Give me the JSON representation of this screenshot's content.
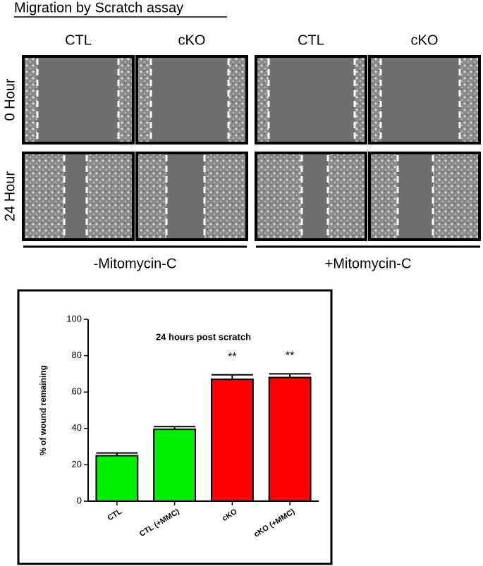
{
  "figure": {
    "title": "Migration by Scratch assay",
    "columns": [
      "CTL",
      "cKO",
      "CTL",
      "cKO"
    ],
    "rows": [
      "0 Hour",
      "24 Hour"
    ],
    "groups": [
      "-Mitomycin-C",
      "+Mitomycin-C"
    ]
  },
  "chart_data": {
    "type": "bar",
    "title": "24 hours post scratch",
    "y_label": "% of wound remaining",
    "categories": [
      "CTL",
      "CTL (+MMC)",
      "cKO",
      "cKO (+MMC)"
    ],
    "values": [
      25,
      39.5,
      67,
      68
    ],
    "errors": [
      1.5,
      1.5,
      2.5,
      2
    ],
    "colors": [
      "#00ee00",
      "#00ee00",
      "#ff0000",
      "#ff0000"
    ],
    "annotations": [
      null,
      null,
      "**",
      "**"
    ],
    "ylim": [
      0,
      100
    ],
    "yticks": [
      0,
      20,
      40,
      60,
      80,
      100
    ]
  }
}
